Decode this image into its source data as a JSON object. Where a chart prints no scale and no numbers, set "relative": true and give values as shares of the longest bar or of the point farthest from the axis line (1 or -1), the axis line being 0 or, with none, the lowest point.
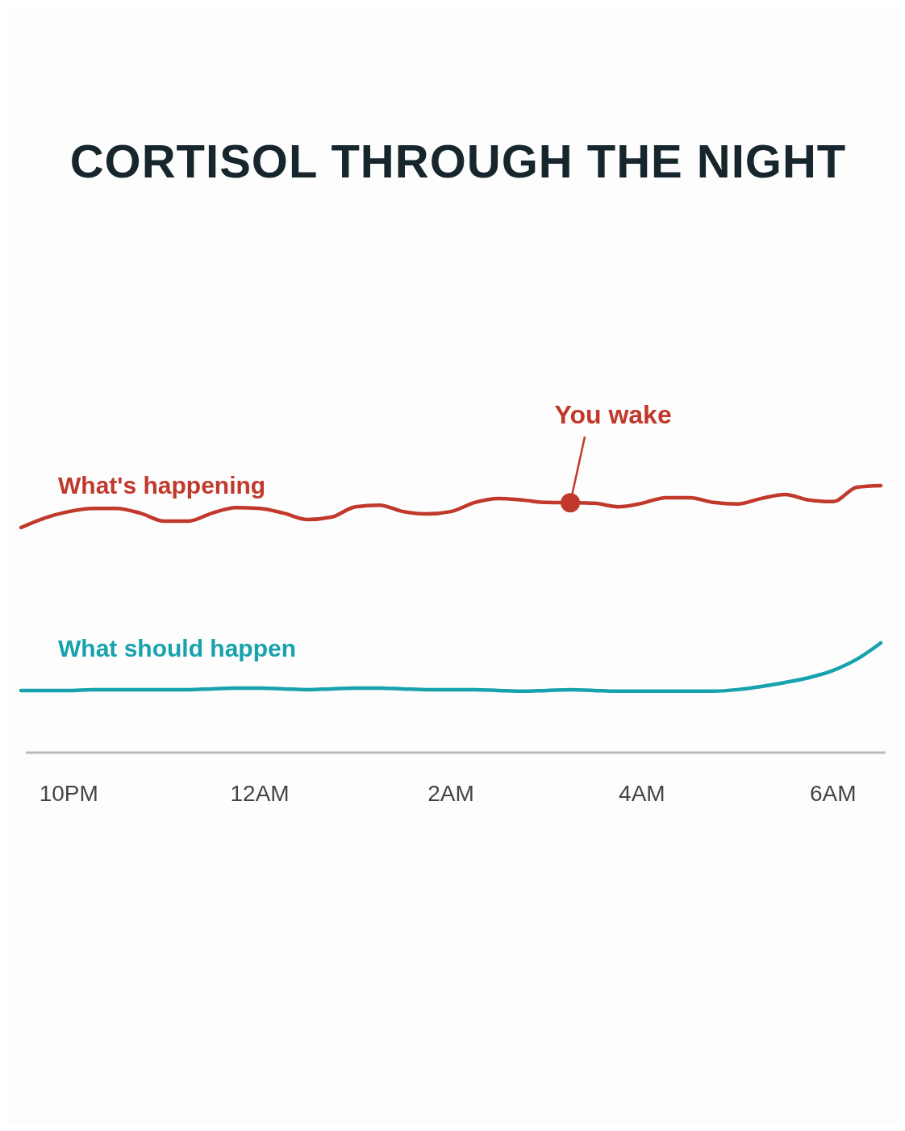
{
  "chart_data": {
    "type": "line",
    "title": "CORTISOL THROUGH THE NIGHT",
    "relative": true,
    "marker": "none",
    "line_style": "solid",
    "categories": [
      null,
      null,
      "10PM",
      null,
      null,
      null,
      null,
      null,
      null,
      null,
      "12AM",
      null,
      null,
      null,
      null,
      null,
      null,
      null,
      "2AM",
      null,
      null,
      null,
      null,
      null,
      null,
      null,
      "4AM",
      null,
      null,
      null,
      null,
      null,
      null,
      null,
      "6AM",
      null,
      null
    ],
    "series": [
      {
        "name": "What's happening",
        "color": "#c0392b",
        "values": [
          0.843,
          0.879,
          0.903,
          0.915,
          0.915,
          0.897,
          0.867,
          0.867,
          0.897,
          0.918,
          0.915,
          0.897,
          0.873,
          0.882,
          0.921,
          0.927,
          0.903,
          0.894,
          0.903,
          0.937,
          0.952,
          0.946,
          0.937,
          0.936,
          0.934,
          0.921,
          0.934,
          0.955,
          0.955,
          0.937,
          0.931,
          0.952,
          0.967,
          0.946,
          0.94,
          0.994,
          1.0
        ]
      },
      {
        "name": "What should happen",
        "color": "#17a2ad",
        "values": [
          0.233,
          0.233,
          0.233,
          0.236,
          0.236,
          0.236,
          0.236,
          0.236,
          0.239,
          0.242,
          0.242,
          0.239,
          0.236,
          0.239,
          0.242,
          0.242,
          0.239,
          0.236,
          0.236,
          0.236,
          0.233,
          0.23,
          0.233,
          0.236,
          0.233,
          0.23,
          0.23,
          0.23,
          0.23,
          0.23,
          0.236,
          0.248,
          0.263,
          0.281,
          0.308,
          0.35,
          0.411
        ]
      }
    ],
    "annotations": [
      {
        "text": "You wake",
        "y": 0.936
      }
    ]
  }
}
